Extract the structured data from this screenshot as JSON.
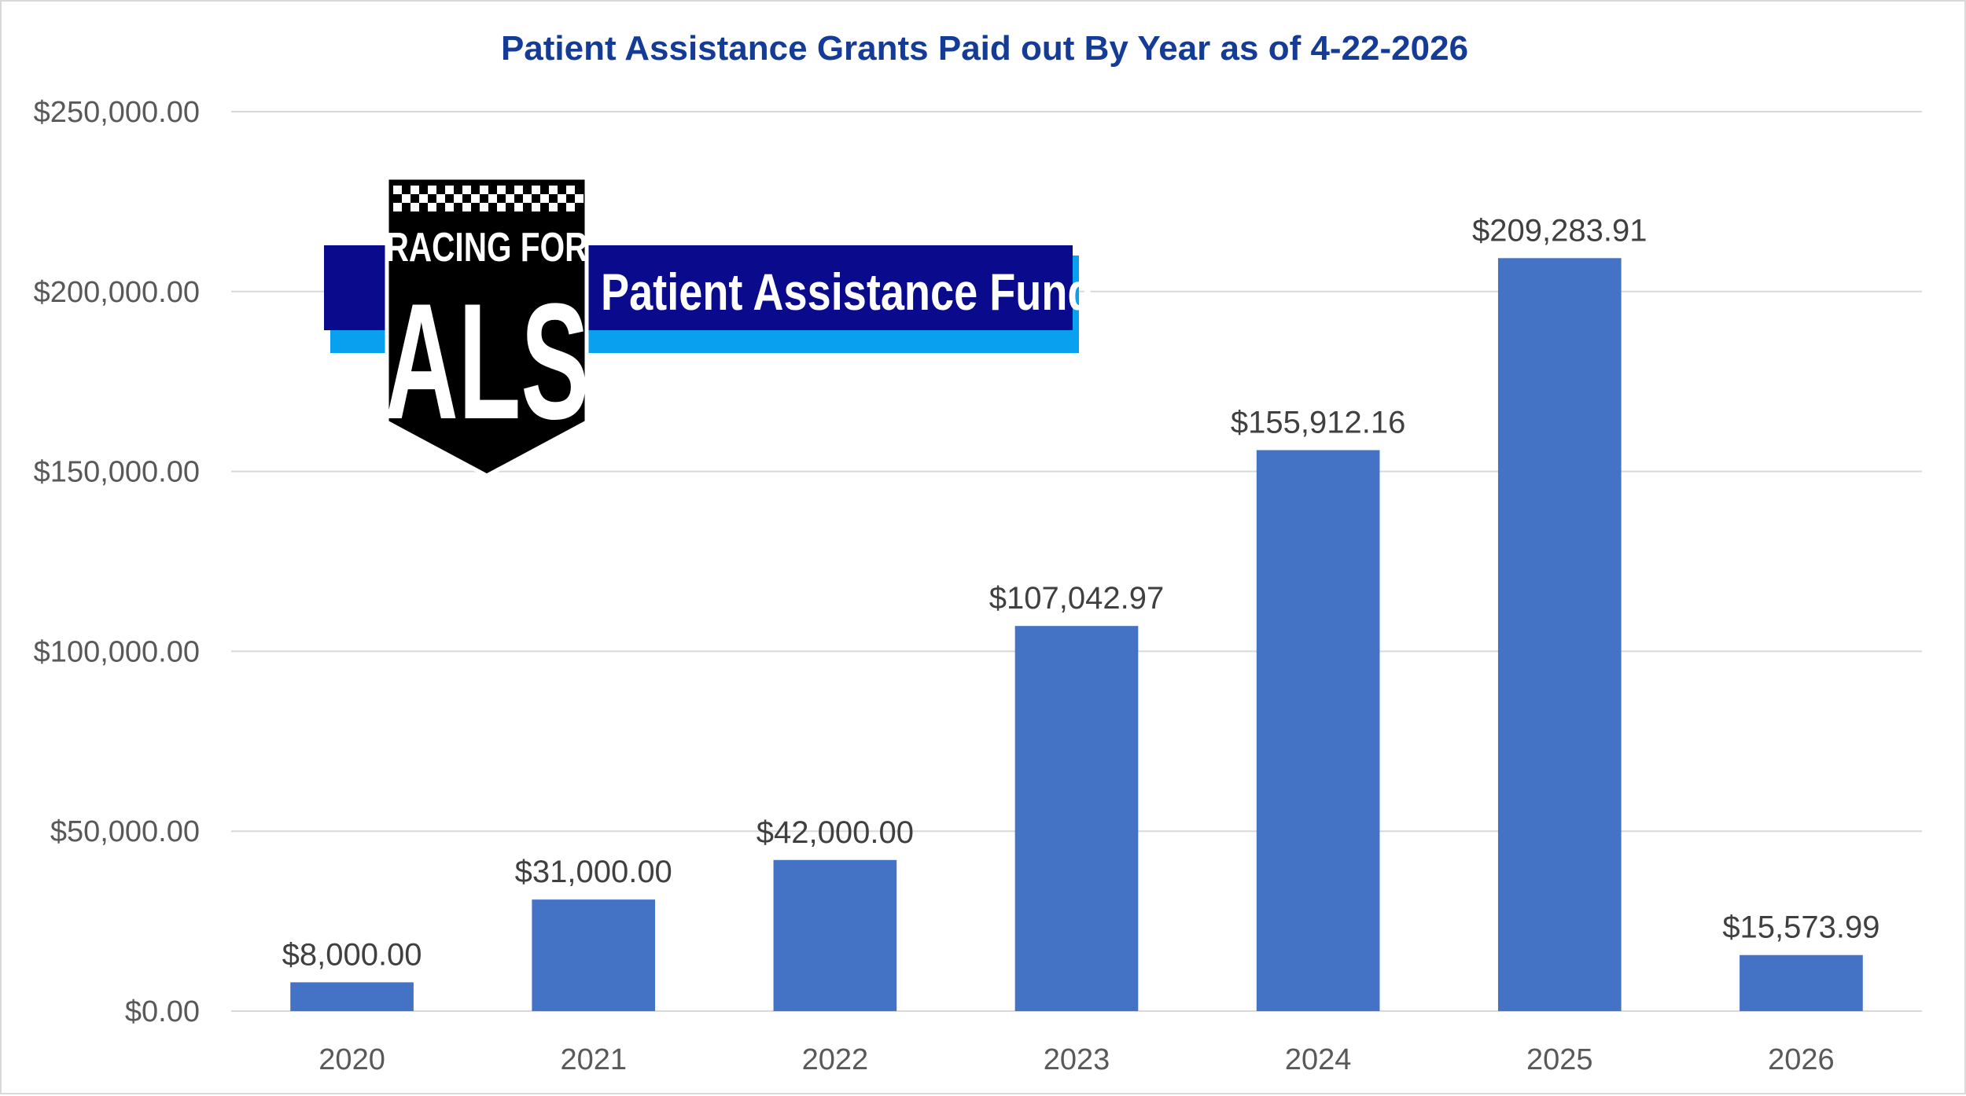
{
  "chart_data": {
    "type": "bar",
    "title": "Patient Assistance Grants Paid out By Year as of 4-22-2026",
    "categories": [
      "2020",
      "2021",
      "2022",
      "2023",
      "2024",
      "2025",
      "2026"
    ],
    "values": [
      8000.0,
      31000.0,
      42000.0,
      107042.97,
      155912.16,
      209283.91,
      15573.99
    ],
    "data_labels": [
      "$8,000.00",
      "$31,000.00",
      "$42,000.00",
      "$107,042.97",
      "$155,912.16",
      "$209,283.91",
      "$15,573.99"
    ],
    "yticks": [
      0,
      50000,
      100000,
      150000,
      200000,
      250000
    ],
    "ytick_labels": [
      "$0.00",
      "$50,000.00",
      "$100,000.00",
      "$150,000.00",
      "$200,000.00",
      "$250,000.00"
    ],
    "ylim": [
      0,
      250000
    ],
    "grid": true,
    "bar_color": "#4472c4",
    "title_color": "#143c96"
  },
  "logo": {
    "line1": "RACING FOR",
    "line2": "ALS",
    "banner_text": "Patient Assistance Fund",
    "colors": {
      "shield": "#000000",
      "banner_dark": "#0a0a8c",
      "banner_light": "#0aa0f0"
    }
  }
}
